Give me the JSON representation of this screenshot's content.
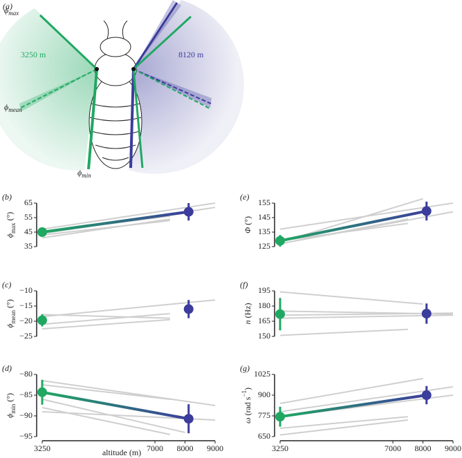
{
  "panel_a": {
    "label": "(a)",
    "phi_max": {
      "symbol": "ϕ",
      "sub": "max"
    },
    "phi_mean": {
      "symbol": "ϕ",
      "sub": "mean"
    },
    "phi_min": {
      "symbol": "ϕ",
      "sub": "min"
    },
    "low_label": "3250 m",
    "high_label": "8120 m"
  },
  "chart_data": [
    {
      "type": "line",
      "label": "(b)",
      "ylabel": {
        "parts": [
          {
            "text": "ϕ"
          },
          {
            "text": "max",
            "shift": "sub"
          },
          {
            "text": " (°)"
          }
        ]
      },
      "xlim": [
        3250,
        9000
      ],
      "ylim": [
        35,
        65
      ],
      "yticks": [
        35,
        45,
        55,
        65
      ],
      "series": [
        {
          "color": "#cfcfcf",
          "x": [
            3250,
            9000
          ],
          "values": [
            47,
            65
          ]
        },
        {
          "color": "#cfcfcf",
          "x": [
            3250,
            9000
          ],
          "values": [
            44,
            62
          ]
        },
        {
          "color": "#cfcfcf",
          "x": [
            3250,
            7500
          ],
          "values": [
            41,
            54
          ]
        },
        {
          "color": "#cfcfcf",
          "x": [
            3250,
            7500
          ],
          "values": [
            45,
            56
          ]
        },
        {
          "color": "#cfcfcf",
          "x": [
            3250,
            7500
          ],
          "values": [
            43,
            53
          ]
        }
      ],
      "means": {
        "x": [
          3250,
          8120
        ],
        "values": [
          45,
          59
        ],
        "errors": [
          3,
          6
        ],
        "colors": [
          "#20a862",
          "#3c3c9c"
        ],
        "connect": true
      }
    },
    {
      "type": "line",
      "label": "(c)",
      "ylabel": {
        "parts": [
          {
            "text": "ϕ"
          },
          {
            "text": "mean",
            "shift": "sub"
          },
          {
            "text": " (°)"
          }
        ]
      },
      "xlim": [
        3250,
        9000
      ],
      "ylim": [
        -25,
        -10
      ],
      "yticks": [
        {
          "value": -25,
          "label": "−25"
        },
        {
          "value": -20,
          "label": "−20"
        },
        {
          "value": -15,
          "label": "−15"
        },
        {
          "value": -10,
          "label": "−10"
        }
      ],
      "series": [
        {
          "color": "#cfcfcf",
          "x": [
            3250,
            7500
          ],
          "values": [
            -17.8,
            -19
          ]
        },
        {
          "color": "#cfcfcf",
          "x": [
            3250,
            9000
          ],
          "values": [
            -18.5,
            -13
          ]
        },
        {
          "color": "#cfcfcf",
          "x": [
            3250,
            7500
          ],
          "values": [
            -21,
            -17.5
          ]
        },
        {
          "color": "#cfcfcf",
          "x": [
            3250,
            7500
          ],
          "values": [
            -22.5,
            -19.5
          ]
        }
      ],
      "means": {
        "x": [
          3250,
          8120
        ],
        "values": [
          -19.7,
          -16
        ],
        "errors": [
          2,
          3
        ],
        "colors": [
          "#20a862",
          "#3c3c9c"
        ],
        "connect": false
      }
    },
    {
      "type": "line",
      "label": "(d)",
      "ylabel": {
        "parts": [
          {
            "text": "ϕ"
          },
          {
            "text": "min",
            "shift": "sub"
          },
          {
            "text": " (°)"
          }
        ]
      },
      "xlim": [
        3250,
        9000
      ],
      "xticks": [
        3250,
        7000,
        8000,
        9000
      ],
      "xlabel": "altitude (m)",
      "ylim": [
        -95,
        -80
      ],
      "yticks": [
        {
          "value": -95,
          "label": "−95"
        },
        {
          "value": -90,
          "label": "−90"
        },
        {
          "value": -85,
          "label": "−85"
        },
        {
          "value": -80,
          "label": "−80"
        }
      ],
      "series": [
        {
          "color": "#cfcfcf",
          "x": [
            3250,
            9000
          ],
          "values": [
            -81.5,
            -87.5
          ]
        },
        {
          "color": "#cfcfcf",
          "x": [
            3250,
            7500
          ],
          "values": [
            -82.5,
            -86
          ]
        },
        {
          "color": "#cfcfcf",
          "x": [
            3250,
            8000
          ],
          "values": [
            -86,
            -94
          ]
        },
        {
          "color": "#cfcfcf",
          "x": [
            3250,
            9000
          ],
          "values": [
            -89,
            -91
          ]
        },
        {
          "color": "#cfcfcf",
          "x": [
            3250,
            7500
          ],
          "values": [
            -88,
            -94.5
          ]
        }
      ],
      "means": {
        "x": [
          3250,
          8120
        ],
        "values": [
          -84.3,
          -90.7
        ],
        "errors": [
          3,
          3.5
        ],
        "colors": [
          "#20a862",
          "#3c3c9c"
        ],
        "connect": true
      }
    },
    {
      "type": "line",
      "label": "(e)",
      "ylabel": {
        "parts": [
          {
            "text": "Φ"
          },
          {
            "text": " (°)"
          }
        ]
      },
      "xlim": [
        3250,
        9000
      ],
      "ylim": [
        125,
        155
      ],
      "yticks": [
        125,
        135,
        145,
        155
      ],
      "series": [
        {
          "color": "#cfcfcf",
          "x": [
            3250,
            9000
          ],
          "values": [
            137,
            155
          ]
        },
        {
          "color": "#cfcfcf",
          "x": [
            3250,
            8000
          ],
          "values": [
            128,
            158
          ]
        },
        {
          "color": "#cfcfcf",
          "x": [
            3250,
            9000
          ],
          "values": [
            127,
            149
          ]
        },
        {
          "color": "#cfcfcf",
          "x": [
            3250,
            7500
          ],
          "values": [
            127,
            144
          ]
        },
        {
          "color": "#cfcfcf",
          "x": [
            3250,
            7500
          ],
          "values": [
            129,
            141
          ]
        }
      ],
      "means": {
        "x": [
          3250,
          8120
        ],
        "values": [
          129,
          149.5
        ],
        "errors": [
          4,
          6.5
        ],
        "colors": [
          "#20a862",
          "#3c3c9c"
        ],
        "connect": true
      }
    },
    {
      "type": "line",
      "label": "(f)",
      "ylabel": {
        "parts": [
          {
            "text": "n"
          },
          {
            "text": " (Hz)"
          }
        ]
      },
      "xlim": [
        3250,
        9000
      ],
      "ylim": [
        150,
        195
      ],
      "yticks": [
        150,
        165,
        180,
        195
      ],
      "series": [
        {
          "color": "#cfcfcf",
          "x": [
            3250,
            8000
          ],
          "values": [
            194,
            182
          ]
        },
        {
          "color": "#cfcfcf",
          "x": [
            3250,
            9000
          ],
          "values": [
            175,
            172
          ]
        },
        {
          "color": "#cfcfcf",
          "x": [
            3250,
            9000
          ],
          "values": [
            171,
            173
          ]
        },
        {
          "color": "#cfcfcf",
          "x": [
            3250,
            9000
          ],
          "values": [
            168,
            171
          ]
        },
        {
          "color": "#cfcfcf",
          "x": [
            3250,
            7500
          ],
          "values": [
            151,
            157
          ]
        }
      ],
      "means": {
        "x": [
          3250,
          8120
        ],
        "values": [
          172,
          172.5
        ],
        "errors": [
          16,
          10
        ],
        "colors": [
          "#20a862",
          "#3c3c9c"
        ],
        "connect": false
      }
    },
    {
      "type": "line",
      "label": "(g)",
      "ylabel": {
        "parts": [
          {
            "text": "ω"
          },
          {
            "text": " (rad s"
          },
          {
            "text": "−1",
            "shift": "sup"
          },
          {
            "text": ")"
          }
        ]
      },
      "xlim": [
        3250,
        9000
      ],
      "xticks": [
        3250,
        7000,
        8000,
        9000
      ],
      "ylim": [
        650,
        1025
      ],
      "yticks": [
        650,
        775,
        900,
        1025
      ],
      "series": [
        {
          "color": "#cfcfcf",
          "x": [
            3250,
            8000
          ],
          "values": [
            850,
            1000
          ]
        },
        {
          "color": "#cfcfcf",
          "x": [
            3250,
            9000
          ],
          "values": [
            800,
            950
          ]
        },
        {
          "color": "#cfcfcf",
          "x": [
            3250,
            9000
          ],
          "values": [
            770,
            900
          ]
        },
        {
          "color": "#cfcfcf",
          "x": [
            3250,
            7500
          ],
          "values": [
            700,
            770
          ]
        },
        {
          "color": "#cfcfcf",
          "x": [
            3250,
            7500
          ],
          "values": [
            660,
            750
          ]
        }
      ],
      "means": {
        "x": [
          3250,
          8120
        ],
        "values": [
          770,
          900
        ],
        "errors": [
          60,
          55
        ],
        "colors": [
          "#20a862",
          "#3c3c9c"
        ],
        "connect": true
      }
    }
  ]
}
